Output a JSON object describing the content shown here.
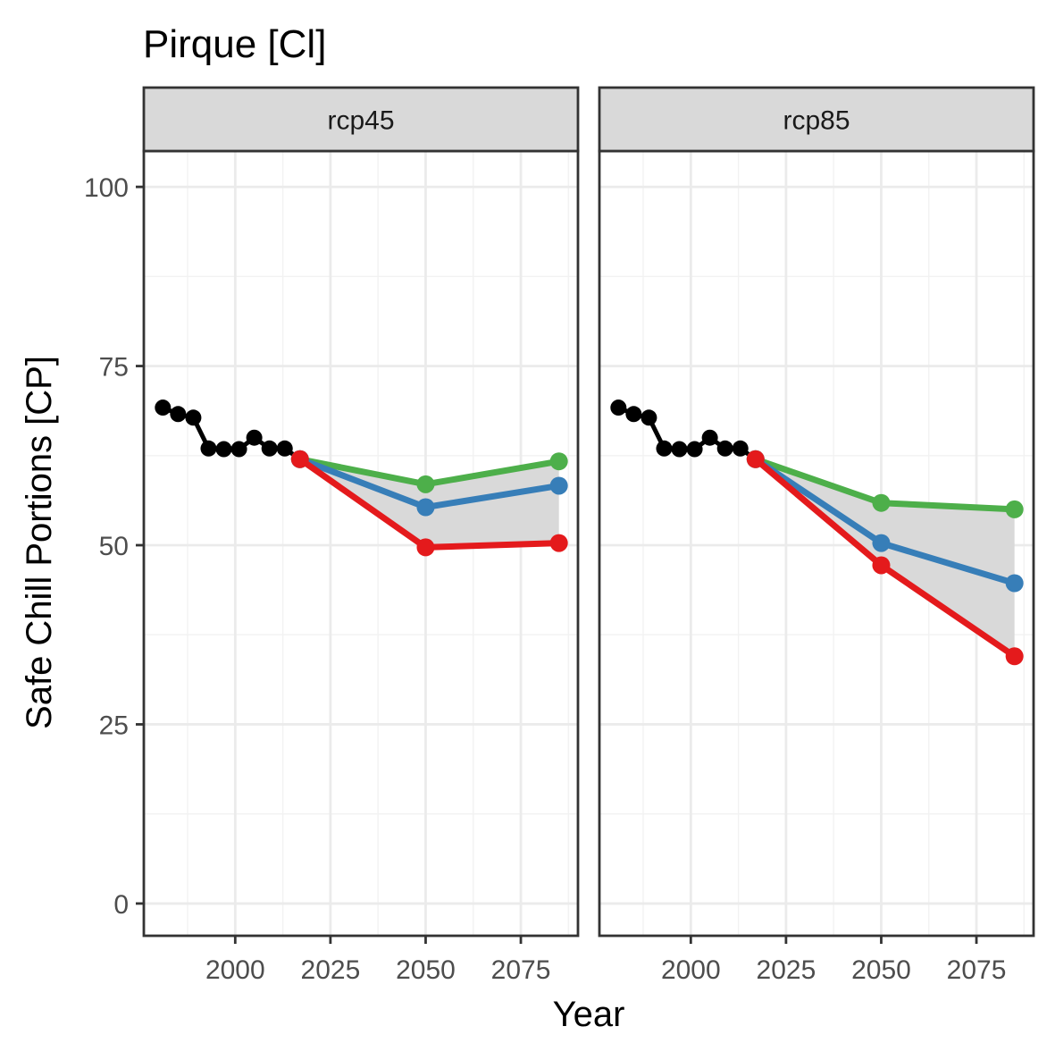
{
  "chart_data": {
    "type": "line",
    "title": "Pirque [Cl]",
    "xlabel": "Year",
    "ylabel": "Safe Chill Portions [CP]",
    "xlim": [
      1976,
      2090
    ],
    "ylim": [
      -4.5,
      105
    ],
    "x_ticks": [
      2000,
      2025,
      2050,
      2075
    ],
    "x_tick_labels": [
      "2000",
      "2025",
      "2050",
      "2075"
    ],
    "y_ticks": [
      0,
      25,
      50,
      75,
      100
    ],
    "y_tick_labels": [
      "0",
      "25",
      "50",
      "75",
      "100"
    ],
    "grid": true,
    "legend": "none",
    "colors": {
      "historic": "#000000",
      "low": "#e41a1c",
      "mid": "#377eb8",
      "high": "#4daf4a",
      "ribbon": "#d9d9d9",
      "strip": "#d9d9d9"
    },
    "panels": [
      {
        "label": "rcp45",
        "historic": {
          "x": [
            1981,
            1985,
            1989,
            1993,
            1997,
            2001,
            2005,
            2009,
            2013,
            2017
          ],
          "y": [
            69.2,
            68.3,
            67.8,
            63.5,
            63.4,
            63.4,
            65.0,
            63.5,
            63.5,
            62.0
          ]
        },
        "series": [
          {
            "key": "high",
            "x": [
              2017,
              2050,
              2085
            ],
            "y": [
              62.0,
              58.5,
              61.7
            ]
          },
          {
            "key": "mid",
            "x": [
              2017,
              2050,
              2085
            ],
            "y": [
              62.0,
              55.3,
              58.3
            ]
          },
          {
            "key": "low",
            "x": [
              2017,
              2050,
              2085
            ],
            "y": [
              62.0,
              49.7,
              50.3
            ]
          }
        ],
        "ribbon": {
          "x": [
            2017,
            2050,
            2085
          ],
          "upper": [
            62.0,
            58.5,
            61.7
          ],
          "lower": [
            62.0,
            49.7,
            50.3
          ]
        }
      },
      {
        "label": "rcp85",
        "historic": {
          "x": [
            1981,
            1985,
            1989,
            1993,
            1997,
            2001,
            2005,
            2009,
            2013,
            2017
          ],
          "y": [
            69.2,
            68.3,
            67.8,
            63.5,
            63.4,
            63.4,
            65.0,
            63.5,
            63.5,
            62.0
          ]
        },
        "series": [
          {
            "key": "high",
            "x": [
              2017,
              2050,
              2085
            ],
            "y": [
              62.0,
              55.9,
              55.0
            ]
          },
          {
            "key": "mid",
            "x": [
              2017,
              2050,
              2085
            ],
            "y": [
              62.0,
              50.3,
              44.7
            ]
          },
          {
            "key": "low",
            "x": [
              2017,
              2050,
              2085
            ],
            "y": [
              62.0,
              47.2,
              34.5
            ]
          }
        ],
        "ribbon": {
          "x": [
            2017,
            2050,
            2085
          ],
          "upper": [
            62.0,
            55.9,
            55.0
          ],
          "lower": [
            62.0,
            47.2,
            34.5
          ]
        }
      }
    ]
  }
}
